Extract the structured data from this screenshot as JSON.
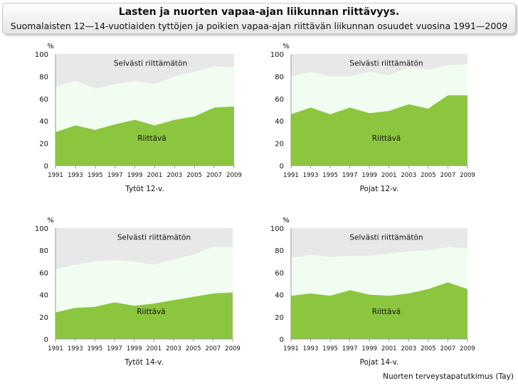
{
  "title": "Lasten ja nuorten vapaa-ajan liikunnan riittävyys.",
  "subtitle": "Suomalaisten 12—14-vuotiaiden tyttöjen ja poikien vapaa-ajan riittävän liikunnan osuudet vuosina 1991—2009",
  "source": "Nuorten terveystapatutkimus (Tay)",
  "colors": {
    "riittava": "#8cc63f",
    "selvasti": "#f1fdf0",
    "background": "#e8e8e8"
  },
  "chart_data": [
    {
      "type": "area",
      "title": "Tytöt 12-v.",
      "ylabel": "%",
      "ylim": [
        0,
        100
      ],
      "yticks": [
        "0",
        "20",
        "40",
        "60",
        "80",
        "100"
      ],
      "x": [
        "1991",
        "1993",
        "1995",
        "1997",
        "1999",
        "2001",
        "2003",
        "2005",
        "2007",
        "2009"
      ],
      "series": [
        {
          "name": "Riittävä",
          "values": [
            30,
            36,
            32,
            37,
            41,
            36,
            41,
            44,
            52,
            53
          ]
        },
        {
          "name": "Selvästi riittämätön",
          "values": [
            71,
            76,
            69,
            73,
            76,
            73,
            80,
            84,
            89,
            88
          ]
        }
      ]
    },
    {
      "type": "area",
      "title": "Pojat 12-v.",
      "ylabel": "%",
      "ylim": [
        0,
        100
      ],
      "yticks": [
        "0",
        "20",
        "40",
        "60",
        "80",
        "100"
      ],
      "x": [
        "1991",
        "1993",
        "1995",
        "1997",
        "1999",
        "2001",
        "2003",
        "2005",
        "2007",
        "2009"
      ],
      "series": [
        {
          "name": "Riittävä",
          "values": [
            46,
            52,
            46,
            52,
            47,
            49,
            55,
            51,
            63,
            63
          ]
        },
        {
          "name": "Selvästi riittämätön",
          "values": [
            80,
            84,
            80,
            80,
            84,
            81,
            88,
            86,
            90,
            91
          ]
        }
      ]
    },
    {
      "type": "area",
      "title": "Tytöt 14-v.",
      "ylabel": "%",
      "ylim": [
        0,
        100
      ],
      "yticks": [
        "0",
        "20",
        "40",
        "60",
        "80",
        "100"
      ],
      "x": [
        "1991",
        "1993",
        "1995",
        "1997",
        "1999",
        "2001",
        "2003",
        "2005",
        "2007",
        "2009"
      ],
      "series": [
        {
          "name": "Riittävä",
          "values": [
            24,
            28,
            29,
            33,
            30,
            32,
            35,
            38,
            41,
            42
          ]
        },
        {
          "name": "Selvästi riittämätön",
          "values": [
            63,
            67,
            70,
            71,
            70,
            67,
            72,
            76,
            83,
            83
          ]
        }
      ]
    },
    {
      "type": "area",
      "title": "Pojat 14-v.",
      "ylabel": "%",
      "ylim": [
        0,
        100
      ],
      "yticks": [
        "0",
        "20",
        "40",
        "60",
        "80",
        "100"
      ],
      "x": [
        "1991",
        "1993",
        "1995",
        "1997",
        "1999",
        "2001",
        "2003",
        "2005",
        "2007",
        "2009"
      ],
      "series": [
        {
          "name": "Riittävä",
          "values": [
            39,
            41,
            39,
            44,
            40,
            39,
            41,
            45,
            51,
            45
          ]
        },
        {
          "name": "Selvästi riittämätön",
          "values": [
            73,
            76,
            74,
            75,
            75,
            77,
            79,
            80,
            83,
            82
          ]
        }
      ]
    }
  ]
}
